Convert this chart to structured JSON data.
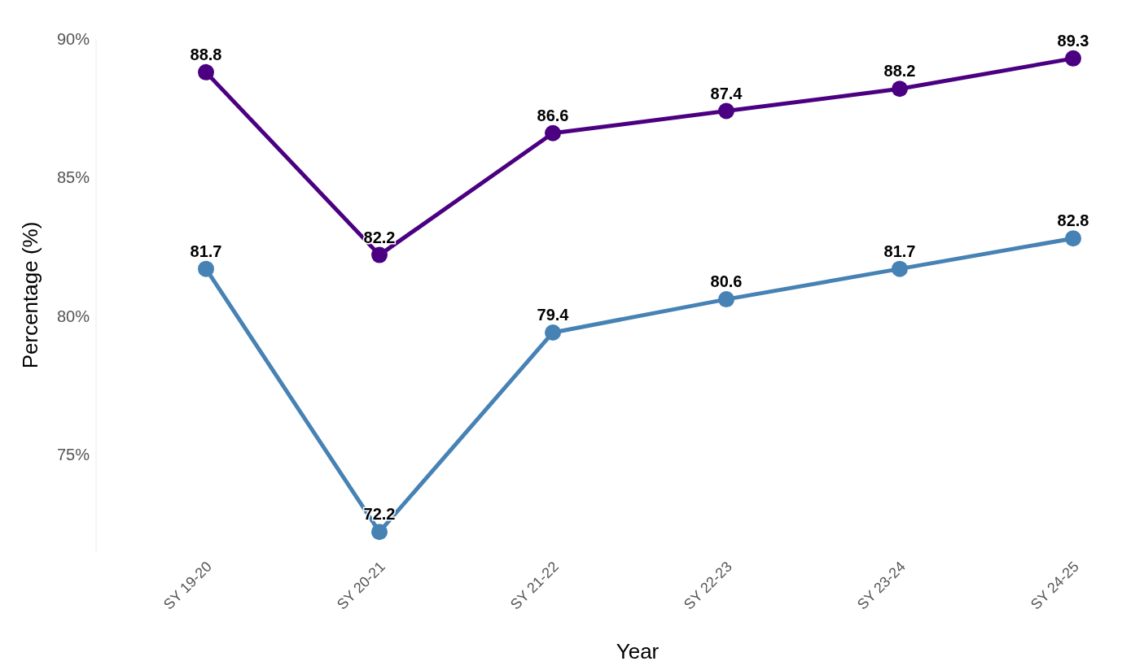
{
  "chart_data": {
    "type": "line",
    "xlabel": "Year",
    "ylabel": "Percentage (%)",
    "categories": [
      "SY 19-20",
      "SY 20-21",
      "SY 21-22",
      "SY 22-23",
      "SY 23-24",
      "SY 24-25"
    ],
    "series": [
      {
        "color": "#4b0082",
        "values": [
          88.8,
          82.2,
          86.6,
          87.4,
          88.2,
          89.3
        ]
      },
      {
        "color": "#4682b4",
        "values": [
          81.7,
          72.2,
          79.4,
          80.6,
          81.7,
          82.8
        ]
      }
    ],
    "ylim": [
      71.5,
      90
    ],
    "yticks": [
      {
        "value": 75,
        "label": "75%"
      },
      {
        "value": 80,
        "label": "80%"
      },
      {
        "value": 85,
        "label": "85%"
      },
      {
        "value": 90,
        "label": "90%"
      }
    ],
    "data_labels": true,
    "marker": "circle",
    "line_style": "solid",
    "grid": false
  }
}
